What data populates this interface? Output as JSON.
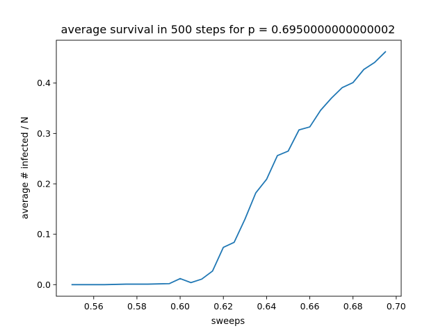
{
  "chart_data": {
    "type": "line",
    "title": "average survival in 500 steps for p = 0.6950000000000002",
    "xlabel": "sweeps",
    "ylabel": "average # infected / N",
    "xlim": [
      0.5427,
      0.7023
    ],
    "ylim": [
      -0.023,
      0.485
    ],
    "xticks": [
      0.56,
      0.58,
      0.6,
      0.62,
      0.64,
      0.66,
      0.68,
      0.7
    ],
    "xtick_labels": [
      "0.56",
      "0.58",
      "0.60",
      "0.62",
      "0.64",
      "0.66",
      "0.68",
      "0.70"
    ],
    "yticks": [
      0.0,
      0.1,
      0.2,
      0.3,
      0.4
    ],
    "ytick_labels": [
      "0.0",
      "0.1",
      "0.2",
      "0.3",
      "0.4"
    ],
    "grid": false,
    "series": [
      {
        "color": "#1f77b4",
        "x": [
          0.55,
          0.555,
          0.56,
          0.565,
          0.57,
          0.575,
          0.58,
          0.585,
          0.59,
          0.595,
          0.6,
          0.605,
          0.61,
          0.615,
          0.62,
          0.625,
          0.63,
          0.635,
          0.64,
          0.645,
          0.65,
          0.655,
          0.66,
          0.665,
          0.67,
          0.675,
          0.68,
          0.685,
          0.69,
          0.695
        ],
        "y": [
          0.0,
          0.0,
          0.0,
          0.0,
          0.0005,
          0.001,
          0.001,
          0.001,
          0.0015,
          0.002,
          0.012,
          0.004,
          0.011,
          0.027,
          0.074,
          0.084,
          0.13,
          0.182,
          0.209,
          0.256,
          0.265,
          0.307,
          0.313,
          0.346,
          0.37,
          0.391,
          0.401,
          0.427,
          0.441,
          0.462
        ]
      }
    ]
  }
}
